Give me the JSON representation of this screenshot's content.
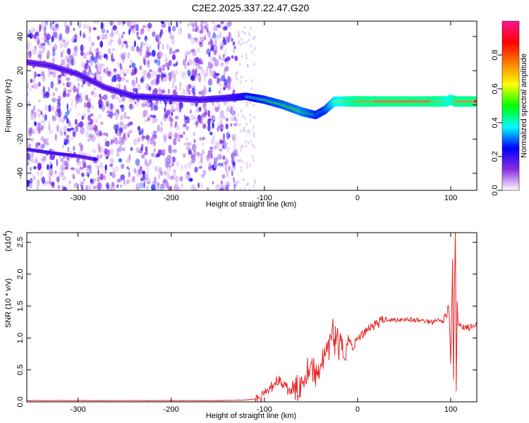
{
  "figure": {
    "title": "C2E2.2025.337.22.47.G20"
  },
  "chart_data": [
    {
      "type": "heatmap",
      "title": "C2E2.2025.337.22.47.G20",
      "xlabel": "Height of straight line (km)",
      "ylabel": "Frequency (Hz)",
      "xlim": [
        -355,
        128
      ],
      "ylim": [
        -50,
        49
      ],
      "xticks": [
        -300,
        -200,
        -100,
        0,
        100
      ],
      "yticks": [
        -40,
        -20,
        0,
        20,
        40
      ],
      "xtick_labels": [
        "-300",
        "-200",
        "-100",
        "0",
        "100"
      ],
      "ytick_labels": [
        "-40",
        "-20",
        "0",
        "20",
        "40"
      ],
      "colorbar": {
        "label": "Normalized spectral amplitude",
        "range": [
          0,
          1
        ],
        "ticks": [
          0.0,
          0.2,
          0.4,
          0.6,
          0.8
        ],
        "tick_labels": [
          "0.0",
          "0.2",
          "0.4",
          "0.6",
          "0.8"
        ],
        "colors": [
          "#ffffff",
          "#8a2be2",
          "#0000ff",
          "#00ffff",
          "#00ff00",
          "#ffff00",
          "#ff8000",
          "#ff0000",
          "#ff1493"
        ]
      },
      "ridge": {
        "x": [
          -355,
          -330,
          -300,
          -270,
          -240,
          -200,
          -170,
          -140,
          -120,
          -100,
          -80,
          -60,
          -45,
          -35,
          -25,
          -10,
          0,
          20,
          50,
          80,
          95,
          100,
          105,
          128
        ],
        "y": [
          25,
          23,
          18,
          10,
          5,
          4,
          3,
          4,
          5,
          3,
          0,
          -4,
          -6,
          -3,
          2,
          2,
          2,
          2,
          2,
          2,
          2,
          3,
          2,
          2
        ],
        "amplitude": [
          0.3,
          0.3,
          0.3,
          0.3,
          0.35,
          0.35,
          0.35,
          0.4,
          0.5,
          0.6,
          0.65,
          0.7,
          0.6,
          0.6,
          0.8,
          0.9,
          0.95,
          0.95,
          0.95,
          0.95,
          0.9,
          0.85,
          0.95,
          0.95
        ]
      },
      "ridge_secondary": {
        "x": [
          -355,
          -330,
          -300,
          -280
        ],
        "y": [
          -26,
          -28,
          -30,
          -32
        ]
      },
      "noise_extent_km": [
        -355,
        -130
      ]
    },
    {
      "type": "line",
      "title": "",
      "xlabel": "Height of straight line (km)",
      "ylabel": "SNR (10 * v/v)",
      "scale_label": "(x10",
      "scale_exponent": "4",
      "xlim": [
        -355,
        128
      ],
      "ylim": [
        0,
        2.65
      ],
      "xticks": [
        -300,
        -200,
        -100,
        0,
        100
      ],
      "yticks": [
        0.0,
        0.5,
        1.0,
        1.5,
        2.0,
        2.5
      ],
      "xtick_labels": [
        "-300",
        "-200",
        "-100",
        "0",
        "100"
      ],
      "ytick_labels": [
        "0.0",
        "0.5",
        "1.0",
        "1.5",
        "2.0",
        "2.5"
      ],
      "series": [
        {
          "name": "SNR",
          "color": "#e8262a",
          "x": [
            -355,
            -300,
            -250,
            -200,
            -150,
            -120,
            -105,
            -100,
            -95,
            -90,
            -85,
            -80,
            -75,
            -70,
            -65,
            -60,
            -55,
            -50,
            -45,
            -40,
            -35,
            -30,
            -27,
            -25,
            -22,
            -20,
            -18,
            -15,
            -12,
            -10,
            -5,
            0,
            5,
            10,
            20,
            30,
            40,
            50,
            60,
            70,
            80,
            85,
            90,
            95,
            98,
            100,
            102,
            103,
            104,
            105,
            106,
            107,
            108,
            110,
            115,
            120,
            128
          ],
          "values": [
            0.02,
            0.02,
            0.02,
            0.02,
            0.02,
            0.03,
            0.05,
            0.1,
            0.18,
            0.28,
            0.35,
            0.25,
            0.2,
            0.15,
            0.2,
            0.3,
            0.5,
            0.6,
            0.4,
            0.6,
            0.7,
            0.8,
            1.3,
            0.9,
            1.1,
            0.8,
            0.9,
            0.7,
            0.9,
            1.0,
            0.85,
            1.0,
            1.05,
            1.15,
            1.22,
            1.3,
            1.28,
            1.3,
            1.28,
            1.27,
            1.25,
            1.3,
            1.25,
            1.35,
            1.5,
            0.6,
            2.2,
            0.3,
            1.8,
            2.65,
            0.2,
            1.6,
            1.15,
            1.2,
            1.18,
            1.16,
            1.18
          ]
        }
      ]
    }
  ]
}
